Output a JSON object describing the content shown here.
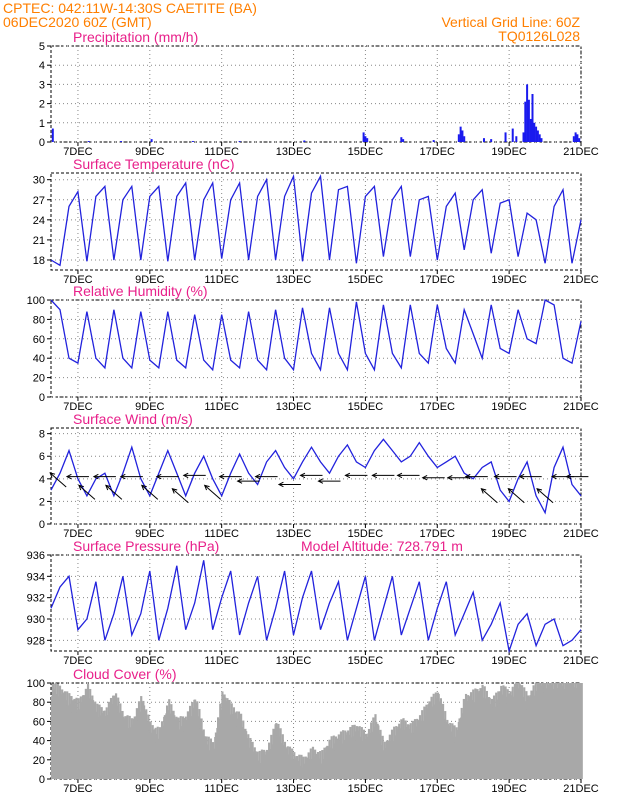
{
  "header": {
    "line1_left": "CPTEC:  042:11W-14:30S  CAETITE (BA)",
    "line2_left": "06DEC2020 60Z (GMT)",
    "line1_right": "Vertical Grid Line: 60Z",
    "line2_right": "TQ0126L028"
  },
  "colors": {
    "header_text": "#ff7f00",
    "panel_title": "#e8208a",
    "series_line": "#2222dd",
    "precip_bars": "#1a1aee",
    "cloud_fill": "#a8a8a8",
    "grid": "#888888",
    "wind_arrows": "#000000"
  },
  "x_axis": {
    "tick_labels": [
      "7DEC",
      "9DEC",
      "11DEC",
      "13DEC",
      "15DEC",
      "17DEC",
      "19DEC",
      "21DEC"
    ],
    "tick_days": [
      7,
      9,
      11,
      13,
      15,
      17,
      19,
      21
    ],
    "range_days": [
      6.25,
      21.0
    ]
  },
  "chart_data": [
    {
      "id": "precip",
      "type": "bar",
      "title": "Precipitation (mm/h)",
      "ylim": [
        0,
        5
      ],
      "yticks": [
        0,
        1,
        2,
        3,
        4,
        5
      ],
      "grid": true,
      "x": [
        6.3,
        7.3,
        8.2,
        9.05,
        10.2,
        11.5,
        13.3,
        14.95,
        15.0,
        15.05,
        16.0,
        16.05,
        16.9,
        17.6,
        17.65,
        17.7,
        17.75,
        18.3,
        18.5,
        18.9,
        19.1,
        19.2,
        19.4,
        19.45,
        19.5,
        19.55,
        19.6,
        19.65,
        19.7,
        19.75,
        19.8,
        19.85,
        19.9,
        20.8,
        20.85,
        20.9,
        20.95
      ],
      "values": [
        0.7,
        0.05,
        0.05,
        0.15,
        0.05,
        0.05,
        0.08,
        0.5,
        0.3,
        0.2,
        0.25,
        0.15,
        0.1,
        0.4,
        0.8,
        0.6,
        0.3,
        0.2,
        0.15,
        0.5,
        0.7,
        0.3,
        0.5,
        2.1,
        3.0,
        2.2,
        1.2,
        2.5,
        1.0,
        0.8,
        0.6,
        0.4,
        0.2,
        0.3,
        0.5,
        0.4,
        0.2
      ]
    },
    {
      "id": "temperature",
      "type": "line",
      "title": "Surface Temperature (nC)",
      "ylim": [
        16.5,
        31
      ],
      "yticks": [
        18,
        21,
        24,
        27,
        30
      ],
      "grid": true,
      "x": [
        6.25,
        6.5,
        6.75,
        7.0,
        7.25,
        7.5,
        7.75,
        8.0,
        8.25,
        8.5,
        8.75,
        9.0,
        9.25,
        9.5,
        9.75,
        10.0,
        10.25,
        10.5,
        10.75,
        11.0,
        11.25,
        11.5,
        11.75,
        12.0,
        12.25,
        12.5,
        12.75,
        13.0,
        13.25,
        13.5,
        13.75,
        14.0,
        14.25,
        14.5,
        14.75,
        15.0,
        15.25,
        15.5,
        15.75,
        16.0,
        16.25,
        16.5,
        16.75,
        17.0,
        17.25,
        17.5,
        17.75,
        18.0,
        18.25,
        18.5,
        18.75,
        19.0,
        19.25,
        19.5,
        19.75,
        20.0,
        20.25,
        20.5,
        20.75,
        21.0
      ],
      "values": [
        18.0,
        17.2,
        26.0,
        28.2,
        17.8,
        27.5,
        29.0,
        18.0,
        27.0,
        29.0,
        18.0,
        27.5,
        29.0,
        17.8,
        27.5,
        29.5,
        18.0,
        27.0,
        29.5,
        18.2,
        27.0,
        29.5,
        18.0,
        27.5,
        30.0,
        18.0,
        27.5,
        30.5,
        17.8,
        28.0,
        30.5,
        18.0,
        28.5,
        29.0,
        17.5,
        27.5,
        29.0,
        18.5,
        27.0,
        29.0,
        18.5,
        27.0,
        27.5,
        18.0,
        26.0,
        28.0,
        19.5,
        27.0,
        28.5,
        19.0,
        26.5,
        27.0,
        18.5,
        25.0,
        24.0,
        17.5,
        26.0,
        28.5,
        17.5,
        24.0
      ]
    },
    {
      "id": "humidity",
      "type": "line",
      "title": "Relative Humidity (%)",
      "ylim": [
        0,
        100
      ],
      "yticks": [
        0,
        20,
        40,
        60,
        80,
        100
      ],
      "grid": true,
      "x": [
        6.25,
        6.5,
        6.75,
        7.0,
        7.25,
        7.5,
        7.75,
        8.0,
        8.25,
        8.5,
        8.75,
        9.0,
        9.25,
        9.5,
        9.75,
        10.0,
        10.25,
        10.5,
        10.75,
        11.0,
        11.25,
        11.5,
        11.75,
        12.0,
        12.25,
        12.5,
        12.75,
        13.0,
        13.25,
        13.5,
        13.75,
        14.0,
        14.25,
        14.5,
        14.75,
        15.0,
        15.25,
        15.5,
        15.75,
        16.0,
        16.25,
        16.5,
        16.75,
        17.0,
        17.25,
        17.5,
        17.75,
        18.0,
        18.25,
        18.5,
        18.75,
        19.0,
        19.25,
        19.5,
        19.75,
        20.0,
        20.25,
        20.5,
        20.75,
        21.0
      ],
      "values": [
        100,
        90,
        40,
        35,
        88,
        40,
        30,
        90,
        40,
        30,
        88,
        38,
        30,
        88,
        38,
        30,
        85,
        38,
        28,
        85,
        38,
        30,
        88,
        38,
        28,
        90,
        40,
        28,
        92,
        45,
        28,
        92,
        45,
        28,
        98,
        45,
        28,
        95,
        45,
        30,
        95,
        45,
        35,
        95,
        50,
        35,
        90,
        65,
        40,
        95,
        50,
        45,
        90,
        60,
        55,
        100,
        95,
        40,
        35,
        78
      ]
    },
    {
      "id": "wind",
      "type": "line",
      "title": "Surface Wind (m/s)",
      "ylim": [
        0,
        8.5
      ],
      "yticks": [
        0,
        2,
        4,
        6,
        8
      ],
      "grid": true,
      "x": [
        6.25,
        6.5,
        6.75,
        7.0,
        7.25,
        7.5,
        7.75,
        8.0,
        8.25,
        8.5,
        8.75,
        9.0,
        9.25,
        9.5,
        9.75,
        10.0,
        10.25,
        10.5,
        10.75,
        11.0,
        11.25,
        11.5,
        11.75,
        12.0,
        12.25,
        12.5,
        12.75,
        13.0,
        13.25,
        13.5,
        13.75,
        14.0,
        14.25,
        14.5,
        14.75,
        15.0,
        15.25,
        15.5,
        15.75,
        16.0,
        16.25,
        16.5,
        16.75,
        17.0,
        17.25,
        17.5,
        17.75,
        18.0,
        18.25,
        18.5,
        18.75,
        19.0,
        19.25,
        19.5,
        19.75,
        20.0,
        20.25,
        20.5,
        20.75,
        21.0
      ],
      "values": [
        3.0,
        4.5,
        6.5,
        4.0,
        2.5,
        4.0,
        4.5,
        2.5,
        4.5,
        6.8,
        4.0,
        2.5,
        4.5,
        6.5,
        4.5,
        2.5,
        4.5,
        6.0,
        4.0,
        2.5,
        4.5,
        6.2,
        4.5,
        3.5,
        5.5,
        6.5,
        5.0,
        4.0,
        5.5,
        6.8,
        5.5,
        4.5,
        6.0,
        7.0,
        5.5,
        5.0,
        6.5,
        7.5,
        6.5,
        5.5,
        6.0,
        7.2,
        6.0,
        5.0,
        5.5,
        6.0,
        4.5,
        4.0,
        5.0,
        5.5,
        3.0,
        2.0,
        4.0,
        5.5,
        2.5,
        1.0,
        5.0,
        6.8,
        3.5,
        2.5
      ],
      "arrows": [
        {
          "day": 6.45,
          "speed": 3.9,
          "dir": "up-left"
        },
        {
          "day": 7.0,
          "speed": 4.2,
          "dir": "left"
        },
        {
          "day": 7.25,
          "speed": 2.8,
          "dir": "up-left"
        },
        {
          "day": 7.75,
          "speed": 4.2,
          "dir": "left"
        },
        {
          "day": 8.0,
          "speed": 2.8,
          "dir": "up-left"
        },
        {
          "day": 8.5,
          "speed": 4.2,
          "dir": "left"
        },
        {
          "day": 9.0,
          "speed": 2.8,
          "dir": "up-left"
        },
        {
          "day": 9.5,
          "speed": 4.2,
          "dir": "left"
        },
        {
          "day": 9.85,
          "speed": 2.5,
          "dir": "up-left"
        },
        {
          "day": 10.25,
          "speed": 4.3,
          "dir": "left"
        },
        {
          "day": 10.75,
          "speed": 2.8,
          "dir": "up-left"
        },
        {
          "day": 11.25,
          "speed": 4.2,
          "dir": "left"
        },
        {
          "day": 11.75,
          "speed": 3.8,
          "dir": "left"
        },
        {
          "day": 12.25,
          "speed": 4.2,
          "dir": "left"
        },
        {
          "day": 12.9,
          "speed": 3.5,
          "dir": "left"
        },
        {
          "day": 13.5,
          "speed": 4.3,
          "dir": "left"
        },
        {
          "day": 14.0,
          "speed": 3.8,
          "dir": "left"
        },
        {
          "day": 14.75,
          "speed": 4.3,
          "dir": "left"
        },
        {
          "day": 15.5,
          "speed": 4.3,
          "dir": "left"
        },
        {
          "day": 16.2,
          "speed": 4.3,
          "dir": "left"
        },
        {
          "day": 16.9,
          "speed": 4.1,
          "dir": "left"
        },
        {
          "day": 17.6,
          "speed": 4.1,
          "dir": "left"
        },
        {
          "day": 18.1,
          "speed": 4.2,
          "dir": "left"
        },
        {
          "day": 18.45,
          "speed": 2.5,
          "dir": "up-left"
        },
        {
          "day": 18.9,
          "speed": 4.2,
          "dir": "left"
        },
        {
          "day": 19.2,
          "speed": 2.5,
          "dir": "up-left"
        },
        {
          "day": 19.6,
          "speed": 4.2,
          "dir": "left"
        },
        {
          "day": 20.0,
          "speed": 2.5,
          "dir": "up-left"
        },
        {
          "day": 20.5,
          "speed": 4.2,
          "dir": "left"
        },
        {
          "day": 20.9,
          "speed": 4.2,
          "dir": "left"
        }
      ]
    },
    {
      "id": "pressure",
      "type": "line",
      "title": "Surface Pressure (hPa)",
      "annotation": "Model Altitude: 728.791  m",
      "ylim": [
        927,
        936
      ],
      "yticks": [
        928,
        930,
        932,
        934,
        936
      ],
      "grid": true,
      "x": [
        6.25,
        6.5,
        6.75,
        7.0,
        7.25,
        7.5,
        7.75,
        8.0,
        8.25,
        8.5,
        8.75,
        9.0,
        9.25,
        9.5,
        9.75,
        10.0,
        10.25,
        10.5,
        10.75,
        11.0,
        11.25,
        11.5,
        11.75,
        12.0,
        12.25,
        12.5,
        12.75,
        13.0,
        13.25,
        13.5,
        13.75,
        14.0,
        14.25,
        14.5,
        14.75,
        15.0,
        15.25,
        15.5,
        15.75,
        16.0,
        16.25,
        16.5,
        16.75,
        17.0,
        17.25,
        17.5,
        17.75,
        18.0,
        18.25,
        18.5,
        18.75,
        19.0,
        19.25,
        19.5,
        19.75,
        20.0,
        20.25,
        20.5,
        20.75,
        21.0
      ],
      "values": [
        931.0,
        933.0,
        934.0,
        929.0,
        930.0,
        933.5,
        928.0,
        930.5,
        934.0,
        928.5,
        930.5,
        934.5,
        928.0,
        931.0,
        935.0,
        929.0,
        931.5,
        935.5,
        929.0,
        932.0,
        934.5,
        928.5,
        931.5,
        934.0,
        928.0,
        931.0,
        934.5,
        928.5,
        932.0,
        934.5,
        929.0,
        931.5,
        933.5,
        928.0,
        931.0,
        934.0,
        928.0,
        931.0,
        934.0,
        928.5,
        931.0,
        933.5,
        928.0,
        931.0,
        933.5,
        928.5,
        930.5,
        932.5,
        928.0,
        929.5,
        931.5,
        927.0,
        929.5,
        930.5,
        927.5,
        929.5,
        930.0,
        927.5,
        928.0,
        929.0
      ]
    },
    {
      "id": "cloud",
      "type": "area",
      "title": "Cloud Cover (%)",
      "ylim": [
        0,
        100
      ],
      "yticks": [
        0,
        20,
        40,
        60,
        80,
        100
      ],
      "grid": true,
      "x": [
        6.25,
        6.5,
        6.75,
        7.0,
        7.25,
        7.5,
        7.75,
        8.0,
        8.25,
        8.5,
        8.75,
        9.0,
        9.25,
        9.5,
        9.75,
        10.0,
        10.25,
        10.5,
        10.75,
        11.0,
        11.25,
        11.5,
        11.75,
        12.0,
        12.25,
        12.5,
        12.75,
        13.0,
        13.25,
        13.5,
        13.75,
        14.0,
        14.25,
        14.5,
        14.75,
        15.0,
        15.25,
        15.5,
        15.75,
        16.0,
        16.25,
        16.5,
        16.75,
        17.0,
        17.25,
        17.5,
        17.75,
        18.0,
        18.25,
        18.5,
        18.75,
        19.0,
        19.25,
        19.5,
        19.75,
        20.0,
        20.25,
        20.5,
        20.75,
        21.0
      ],
      "values": [
        95,
        88,
        80,
        75,
        90,
        70,
        65,
        85,
        60,
        55,
        80,
        50,
        45,
        75,
        55,
        60,
        80,
        40,
        30,
        85,
        70,
        60,
        35,
        20,
        25,
        55,
        30,
        20,
        15,
        25,
        20,
        35,
        40,
        45,
        50,
        40,
        60,
        30,
        45,
        55,
        50,
        60,
        75,
        85,
        55,
        45,
        80,
        85,
        90,
        75,
        90,
        85,
        95,
        80,
        95,
        98,
        95,
        98,
        98,
        100
      ]
    }
  ]
}
